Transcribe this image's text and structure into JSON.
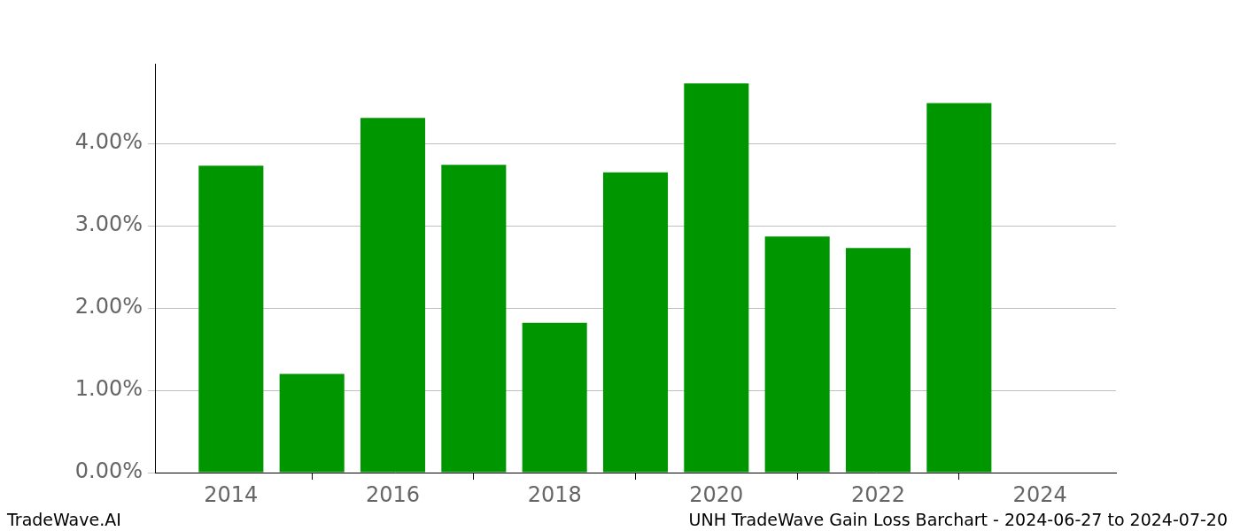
{
  "chart_data": {
    "type": "bar",
    "title": "UNH TradeWave Gain Loss Barchart - 2024-06-27 to 2024-07-20",
    "source": "TradeWave.AI",
    "x": [
      2014,
      2015,
      2016,
      2017,
      2018,
      2019,
      2020,
      2021,
      2022,
      2023,
      2024
    ],
    "values": [
      3.73,
      1.2,
      4.31,
      3.74,
      1.82,
      3.65,
      4.73,
      2.87,
      2.73,
      4.49,
      0
    ],
    "color": "#009600",
    "xlim": [
      2013.06,
      2024.94
    ],
    "xticks": [
      2014,
      2016,
      2018,
      2020,
      2022,
      2024
    ],
    "ylim": [
      0,
      4.97
    ],
    "yticks": [
      {
        "value": 0,
        "label": "0.00%"
      },
      {
        "value": 1,
        "label": "1.00%"
      },
      {
        "value": 2,
        "label": "2.00%"
      },
      {
        "value": 3,
        "label": "3.00%"
      },
      {
        "value": 4,
        "label": "4.00%"
      }
    ],
    "grid": true
  }
}
